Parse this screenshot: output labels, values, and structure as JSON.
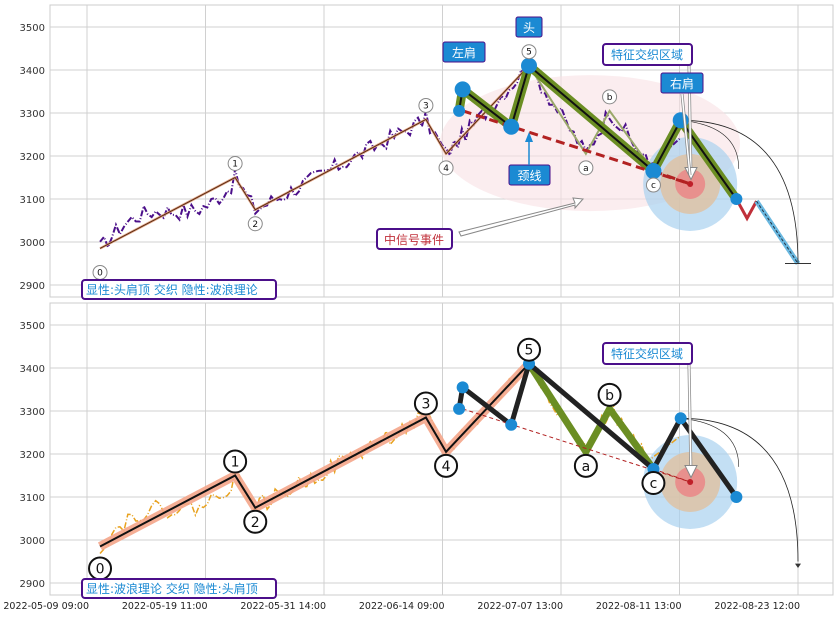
{
  "chart_data": [
    {
      "type": "line",
      "panel": "top",
      "ylim": [
        2875,
        3550
      ],
      "yticks": [
        2900,
        3000,
        3100,
        3200,
        3300,
        3400,
        3500
      ],
      "grid": true,
      "legend_text": "显性:头肩顶 交织 隐性:波浪理论",
      "wave_points": [
        {
          "label": "0",
          "t": 0.11,
          "y": 2985
        },
        {
          "label": "1",
          "t": 1.25,
          "y": 3150
        },
        {
          "label": "2",
          "t": 1.42,
          "y": 3075
        },
        {
          "label": "3",
          "t": 2.86,
          "y": 3285
        },
        {
          "label": "4",
          "t": 3.03,
          "y": 3205
        },
        {
          "label": "5",
          "t": 3.73,
          "y": 3410
        },
        {
          "label": "a",
          "t": 4.21,
          "y": 3205
        },
        {
          "label": "b",
          "t": 4.41,
          "y": 3305
        },
        {
          "label": "c",
          "t": 4.78,
          "y": 3165
        }
      ],
      "pattern_points": [
        {
          "t": 3.14,
          "y": 3305
        },
        {
          "t": 3.17,
          "y": 3355
        },
        {
          "t": 3.58,
          "y": 3268
        },
        {
          "t": 3.73,
          "y": 3410
        },
        {
          "t": 4.78,
          "y": 3165
        },
        {
          "t": 5.01,
          "y": 3283
        },
        {
          "t": 5.48,
          "y": 3100
        }
      ],
      "projection": [
        {
          "t": 5.48,
          "y": 3100
        },
        {
          "t": 5.57,
          "y": 3055
        },
        {
          "t": 5.65,
          "y": 3095
        },
        {
          "t": 6.0,
          "y": 2950
        }
      ],
      "neckline": [
        {
          "t": 3.17,
          "y": 3305
        },
        {
          "t": 5.09,
          "y": 3135
        }
      ],
      "annotations": {
        "left_shoulder": "左肩",
        "head": "头",
        "right_shoulder": "右肩",
        "neckline": "颈线",
        "interweave_zone": "特征交织区域",
        "signal_event": "中信号事件"
      }
    },
    {
      "type": "line",
      "panel": "bottom",
      "ylim": [
        2875,
        3550
      ],
      "yticks": [
        2900,
        3000,
        3100,
        3200,
        3300,
        3400,
        3500
      ],
      "grid": true,
      "legend_text": "显性:波浪理论 交织 隐性:头肩顶",
      "wave_points": [
        {
          "label": "0",
          "t": 0.11,
          "y": 2985
        },
        {
          "label": "1",
          "t": 1.25,
          "y": 3150
        },
        {
          "label": "2",
          "t": 1.42,
          "y": 3075
        },
        {
          "label": "3",
          "t": 2.86,
          "y": 3285
        },
        {
          "label": "4",
          "t": 3.03,
          "y": 3205
        },
        {
          "label": "5",
          "t": 3.73,
          "y": 3410
        },
        {
          "label": "a",
          "t": 4.21,
          "y": 3205
        },
        {
          "label": "b",
          "t": 4.41,
          "y": 3305
        },
        {
          "label": "c",
          "t": 4.78,
          "y": 3165
        }
      ],
      "pattern_points": [
        {
          "t": 3.14,
          "y": 3305
        },
        {
          "t": 3.17,
          "y": 3355
        },
        {
          "t": 3.58,
          "y": 3268
        },
        {
          "t": 3.73,
          "y": 3410
        },
        {
          "t": 4.78,
          "y": 3165
        },
        {
          "t": 5.01,
          "y": 3283
        },
        {
          "t": 5.48,
          "y": 3100
        }
      ],
      "neckline": [
        {
          "t": 3.17,
          "y": 3305
        },
        {
          "t": 5.09,
          "y": 3135
        }
      ],
      "annotations": {
        "interweave_zone": "特征交织区域"
      }
    }
  ],
  "x_ticks": [
    "2022-05-09 09:00",
    "2022-05-19 11:00",
    "2022-05-31 14:00",
    "2022-06-14 09:00",
    "2022-07-07 13:00",
    "2022-08-11 13:00",
    "2022-08-23 12:00"
  ],
  "colors": {
    "price_top": "#4b0f8a",
    "price_bottom": "#e8a21f",
    "wave_top": "#e0a080",
    "wave_bottom": "#f4a58a",
    "pattern": "#6b8e23",
    "marker": "#1b8ad3",
    "neckline": "#b22222",
    "label_box": "#1b8ad3",
    "label_border": "#4b0f8a"
  }
}
